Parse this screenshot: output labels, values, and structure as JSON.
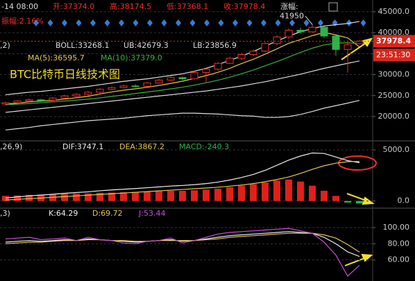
{
  "header": {
    "time": "-14 08:00",
    "open": "开:37374.0",
    "high": "高:38174.5",
    "low": "低:37368.1",
    "close": "收:37978.4",
    "change": "涨幅:",
    "amplitude": "振幅:2.16%"
  },
  "chart_data": [
    {
      "type": "candlestick",
      "title": "BTC比特币日线技术图",
      "indicator": ",2)",
      "countdown": "23:51:30",
      "up_color": "#f0302a",
      "down_color": "#2fb34a",
      "grid": true,
      "ylim": [
        14700,
        47800
      ],
      "yticks": [
        {
          "value": 45000,
          "label": "45000.0"
        },
        {
          "value": 40000,
          "label": "40000.0"
        },
        {
          "value": 35000,
          "label": "35000.0"
        },
        {
          "value": 30000,
          "label": "30000.0"
        },
        {
          "value": 25000,
          "label": "25000.0"
        },
        {
          "value": 20000,
          "label": "20000.0"
        }
      ],
      "open": [
        23000,
        23300,
        23700,
        24000,
        23900,
        24400,
        24900,
        25300,
        25800,
        26500,
        26900,
        27300,
        27200,
        28000,
        28700,
        29300,
        29000,
        30500,
        31300,
        32700,
        33900,
        34800,
        35600,
        37400,
        39000,
        40600,
        40200,
        41300,
        39200,
        36000,
        37374.0
      ],
      "high": [
        23500,
        23900,
        24300,
        24200,
        24600,
        25200,
        25600,
        26100,
        26800,
        27200,
        27600,
        27700,
        28300,
        29000,
        29600,
        29500,
        30800,
        31700,
        33000,
        34300,
        35200,
        36000,
        37800,
        39400,
        41000,
        41200,
        41950,
        41500,
        39700,
        37800,
        38174.5
      ],
      "low": [
        22700,
        23100,
        23500,
        23500,
        23700,
        24200,
        24700,
        25100,
        25600,
        26300,
        26700,
        27000,
        27000,
        27800,
        28500,
        28700,
        28800,
        28000,
        30900,
        32500,
        33500,
        34400,
        35300,
        37000,
        38500,
        39800,
        40000,
        38800,
        34500,
        30500,
        37368.1
      ],
      "close": [
        23300,
        23700,
        24000,
        23800,
        24400,
        24900,
        25300,
        25800,
        26500,
        26900,
        27300,
        27200,
        28000,
        28700,
        29300,
        29000,
        30500,
        31300,
        32700,
        33900,
        34800,
        35600,
        37400,
        39000,
        40600,
        40200,
        41300,
        39200,
        36000,
        37100,
        37978.4
      ],
      "series": [
        {
          "name": "BOLL:33268.1",
          "color": "#dddddd",
          "values": [
            21000,
            21300,
            21600,
            21900,
            22200,
            22500,
            22800,
            23100,
            23400,
            23700,
            24000,
            24300,
            24600,
            24900,
            25200,
            25500,
            25800,
            26100,
            26500,
            26900,
            27300,
            27800,
            28300,
            28900,
            29500,
            30100,
            30800,
            31500,
            32100,
            32700,
            33268.1
          ]
        },
        {
          "name": "UB:42679.3",
          "color": "#dddddd",
          "values": [
            25200,
            25500,
            25800,
            26000,
            26300,
            26600,
            26900,
            27200,
            27600,
            28000,
            28400,
            28700,
            29000,
            29400,
            29800,
            30200,
            30800,
            31500,
            32400,
            33400,
            34400,
            35500,
            36800,
            38000,
            39200,
            40200,
            41000,
            41600,
            41900,
            42200,
            42679.3
          ]
        },
        {
          "name": "LB:23856.9",
          "color": "#dddddd",
          "values": [
            16800,
            17100,
            17400,
            17800,
            18100,
            18400,
            18700,
            19000,
            19200,
            19400,
            19600,
            19900,
            20200,
            20400,
            20600,
            20800,
            20800,
            20700,
            20600,
            20400,
            20200,
            20100,
            19800,
            19800,
            20000,
            20500,
            21200,
            22000,
            22600,
            23200,
            23856.9
          ]
        },
        {
          "name": "MA(5):36595.7",
          "color": "#e6c84a",
          "values": [
            23000,
            23200,
            23500,
            23700,
            23840,
            24160,
            24480,
            24840,
            25380,
            25880,
            26280,
            26620,
            26980,
            27420,
            27900,
            28440,
            29100,
            29760,
            30560,
            31480,
            32640,
            33660,
            34880,
            36140,
            37460,
            38360,
            39300,
            40060,
            39460,
            38760,
            36595.7
          ]
        },
        {
          "name": "MA(10):37379.0",
          "color": "#3cb043",
          "values": [
            22800,
            22950,
            23100,
            23300,
            23500,
            23700,
            23900,
            24150,
            24450,
            24800,
            25150,
            25500,
            25850,
            26200,
            26600,
            27000,
            27500,
            28050,
            28650,
            29400,
            30200,
            31100,
            32100,
            33100,
            34200,
            35300,
            36300,
            37100,
            37500,
            37600,
            37379.0
          ]
        }
      ]
    },
    {
      "type": "macd",
      "indicator": ",26,9)",
      "grid": true,
      "ylim": [
        -700,
        5750
      ],
      "yticks": [
        {
          "value": 5000,
          "label": "5000.0"
        },
        {
          "value": 0,
          "label": "0.0"
        }
      ],
      "histogram": {
        "name": "MACD:-240.3",
        "up_color": "#e0201a",
        "down_color": "#2fb34a",
        "values": [
          500,
          550,
          600,
          620,
          650,
          700,
          720,
          750,
          800,
          820,
          850,
          880,
          900,
          950,
          1000,
          1000,
          1050,
          1100,
          1200,
          1350,
          1500,
          1650,
          1800,
          2000,
          2100,
          1900,
          1500,
          1000,
          500,
          -150,
          -240.3
        ]
      },
      "series": [
        {
          "name": "DIF:3747.1",
          "color": "#eeeeee",
          "values": [
            300,
            400,
            500,
            580,
            660,
            750,
            830,
            900,
            1000,
            1080,
            1150,
            1220,
            1300,
            1380,
            1460,
            1520,
            1600,
            1700,
            1850,
            2050,
            2300,
            2600,
            3000,
            3500,
            4000,
            4400,
            4700,
            4650,
            4300,
            3950,
            3747.1
          ]
        },
        {
          "name": "DEA:3867.2",
          "color": "#e6c84a",
          "values": [
            100,
            160,
            230,
            290,
            360,
            430,
            500,
            570,
            640,
            710,
            780,
            850,
            920,
            990,
            1060,
            1130,
            1200,
            1270,
            1350,
            1450,
            1560,
            1700,
            1880,
            2100,
            2350,
            2700,
            3100,
            3450,
            3700,
            3850,
            3867.2
          ]
        }
      ]
    },
    {
      "type": "kdj",
      "indicator": ",3)",
      "grid": true,
      "ylim": [
        34,
        124
      ],
      "yticks": [
        {
          "value": 100,
          "label": "100.00"
        },
        {
          "value": 80,
          "label": "80.00"
        },
        {
          "value": 60,
          "label": "60.00"
        }
      ],
      "series": [
        {
          "name": "K:64.29",
          "color": "#eeeeee",
          "values": [
            82,
            83,
            84,
            83,
            84,
            85,
            84,
            86,
            85,
            84,
            83,
            82,
            83,
            84,
            85,
            83,
            84,
            86,
            88,
            90,
            91,
            92,
            93,
            94,
            95,
            94,
            93,
            88,
            80,
            70,
            64.29
          ]
        },
        {
          "name": "D:69.72",
          "color": "#e6c84a",
          "values": [
            80,
            81,
            82,
            82,
            83,
            84,
            84,
            85,
            85,
            84,
            84,
            83,
            83,
            84,
            84,
            84,
            84,
            85,
            86,
            88,
            89,
            90,
            91,
            92,
            93,
            93,
            93,
            91,
            87,
            79,
            69.72
          ]
        },
        {
          "name": "J:53.44",
          "color": "#c84fd8",
          "values": [
            86,
            87,
            88,
            85,
            86,
            87,
            84,
            88,
            85,
            84,
            81,
            80,
            83,
            84,
            87,
            81,
            84,
            88,
            92,
            94,
            95,
            96,
            97,
            98,
            99,
            96,
            93,
            82,
            66,
            40,
            53.44
          ]
        }
      ]
    }
  ]
}
